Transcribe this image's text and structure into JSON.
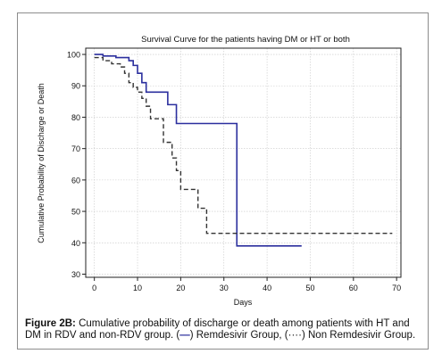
{
  "chart_data": {
    "type": "line",
    "title": "Survival Curve for the patients having DM or HT or both",
    "xlabel": "Days",
    "ylabel": "Cumulative Probability of Discharge or Death",
    "xlim": [
      -2,
      71
    ],
    "ylim": [
      29,
      102
    ],
    "x_ticks": [
      0,
      10,
      20,
      30,
      40,
      50,
      60,
      70
    ],
    "y_ticks": [
      30,
      40,
      50,
      60,
      70,
      80,
      90,
      100
    ],
    "grid": true,
    "step": true,
    "series": [
      {
        "name": "Remdesivir Group",
        "color": "#2b2f9e",
        "dash": "solid",
        "x": [
          0,
          2,
          3,
          5,
          7,
          8,
          9,
          10,
          11,
          12,
          17,
          19,
          33,
          48
        ],
        "y": [
          100,
          99.5,
          99.5,
          99,
          99,
          98,
          96.5,
          94,
          91,
          88,
          84,
          78,
          39,
          39
        ]
      },
      {
        "name": "Non Remdesivir Group",
        "color": "#333333",
        "dash": "dashed",
        "x": [
          0,
          2,
          4,
          6,
          7,
          8,
          9,
          10,
          11,
          12,
          13,
          16,
          18,
          19,
          20,
          24,
          26,
          69
        ],
        "y": [
          99,
          98,
          97,
          96,
          94,
          91,
          89.5,
          88,
          86,
          83.5,
          79.5,
          72,
          67,
          63,
          57,
          51,
          43,
          43
        ]
      }
    ]
  },
  "caption": {
    "label": "Figure 2B:",
    "text": " Cumulative probability of discharge or death among patients with HT and DM in RDV and non-RDV group. (",
    "remdesivir_symbol": "—",
    "mid_text": ") Remdesivir Group, (",
    "non_remdesivir_symbol": "····",
    "end_text": ") Non Remdesivir Group."
  }
}
